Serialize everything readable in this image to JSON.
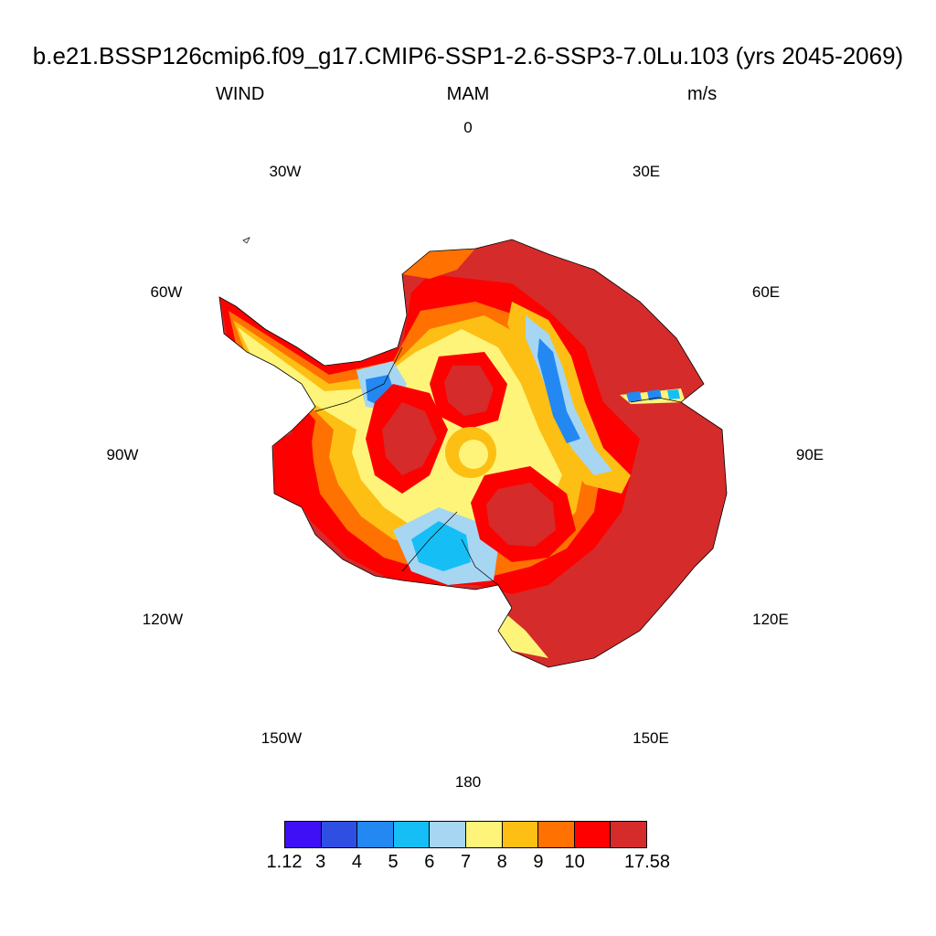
{
  "header": {
    "title": "b.e21.BSSP126cmip6.f09_g17.CMIP6-SSP1-2.6-SSP3-7.0Lu.103 (yrs 2045-2069)",
    "variable": "WIND",
    "season": "MAM",
    "units": "m/s"
  },
  "longitude_labels": [
    "0",
    "30E",
    "60E",
    "90E",
    "120E",
    "150E",
    "180",
    "150W",
    "120W",
    "90W",
    "60W",
    "30W"
  ],
  "colorbar": {
    "colors": [
      "#3f10f5",
      "#2f4fe3",
      "#2388f2",
      "#15bff5",
      "#a6d6f2",
      "#fff47a",
      "#fdbf14",
      "#ff7100",
      "#fe0000",
      "#d52b2b"
    ],
    "labels": [
      "1.12",
      "3",
      "4",
      "5",
      "6",
      "7",
      "8",
      "9",
      "10",
      "17.58"
    ]
  }
}
